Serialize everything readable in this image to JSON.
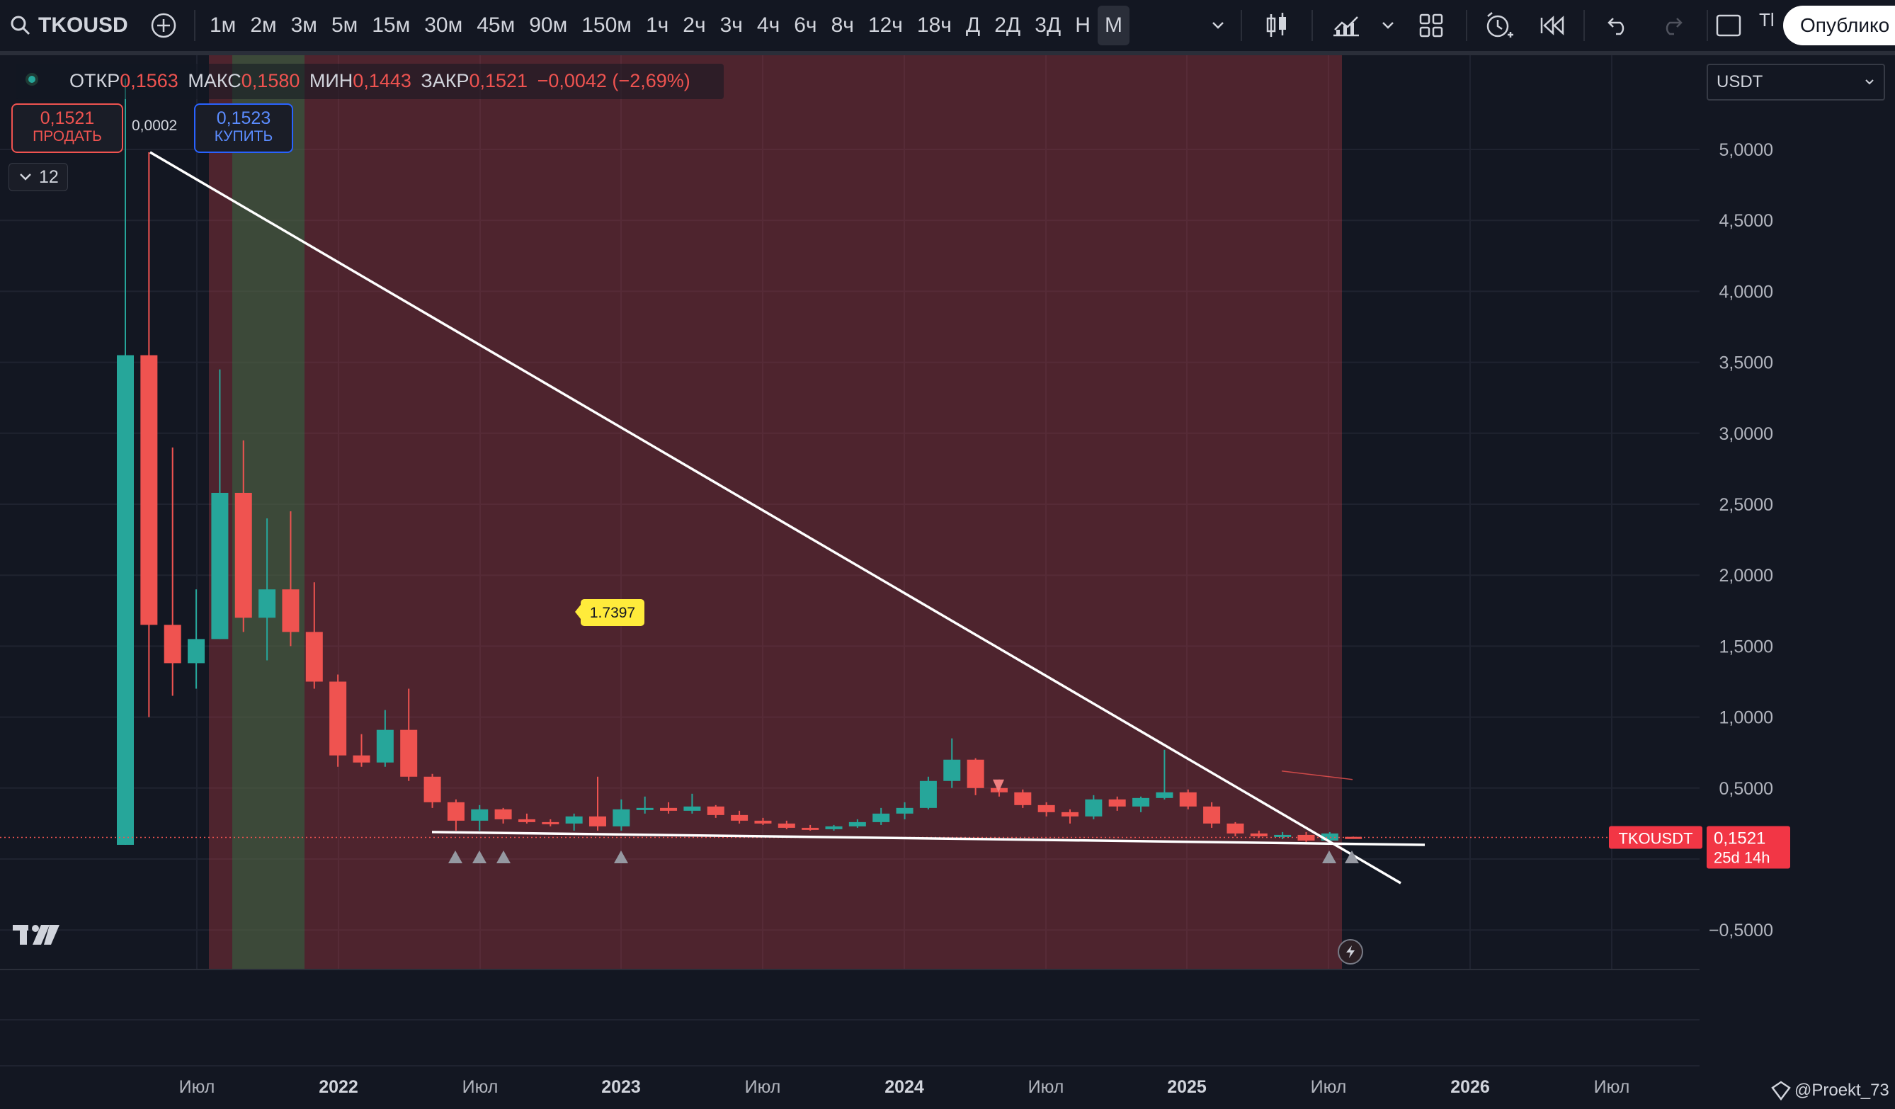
{
  "toolbar": {
    "symbol": "TKOUSD",
    "timeframes": [
      "1м",
      "2м",
      "3м",
      "5м",
      "15м",
      "30м",
      "45м",
      "90м",
      "150м",
      "1ч",
      "2ч",
      "3ч",
      "4ч",
      "6ч",
      "8ч",
      "12ч",
      "18ч",
      "Д",
      "2Д",
      "3Д",
      "Н",
      "М"
    ],
    "active_timeframe": "М",
    "truncated_label": "Tl",
    "publish_label": "Опублико",
    "icons": [
      "search-icon",
      "add-symbol-icon",
      "chevron-down-icon",
      "candles-icon",
      "indicators-icon",
      "chevron-down-icon",
      "layouts-icon",
      "alert-icon",
      "replay-icon",
      "undo-icon",
      "redo-icon",
      "fullscreen-icon"
    ]
  },
  "legend": {
    "status_color": "#26a69a",
    "open_label": "ОТКР",
    "open": "0,1563",
    "high_label": "МАКС",
    "high": "0,1580",
    "low_label": "МИН",
    "low": "0,1443",
    "close_label": "ЗАКР",
    "close": "0,1521",
    "change": "−0,0042 (−2,69%)",
    "sell_price": "0,1521",
    "sell_label": "ПРОДАТЬ",
    "spread": "0,0002",
    "buy_price": "0,1523",
    "buy_label": "КУПИТЬ",
    "indicators_count": "12"
  },
  "currency_select": "USDT",
  "price_tag": {
    "symbol": "TKOUSDT",
    "price": "0,1521",
    "countdown": "25d 14h"
  },
  "annotation": "1.7397",
  "watermark": "@Proekt_73",
  "chart_data": {
    "type": "candlestick",
    "interval": "monthly",
    "y_ticks": [
      "5,0000",
      "4,5000",
      "4,0000",
      "3,5000",
      "3,0000",
      "2,5000",
      "2,0000",
      "1,5000",
      "1,0000",
      "0,5000",
      "−0,5000"
    ],
    "x_ticks": [
      "Июл",
      "2022",
      "Июл",
      "2023",
      "Июл",
      "2024",
      "Июл",
      "2025",
      "Июл",
      "2026",
      "Июл"
    ],
    "ylim": [
      -0.7,
      5.8
    ],
    "candles": [
      {
        "o": 0.1,
        "h": 5.5,
        "l": 0.1,
        "c": 3.55
      },
      {
        "o": 3.55,
        "h": 4.98,
        "l": 1.0,
        "c": 1.65
      },
      {
        "o": 1.65,
        "h": 2.9,
        "l": 1.15,
        "c": 1.38
      },
      {
        "o": 1.38,
        "h": 1.9,
        "l": 1.2,
        "c": 1.55
      },
      {
        "o": 1.55,
        "h": 3.45,
        "l": 1.55,
        "c": 2.58
      },
      {
        "o": 2.58,
        "h": 2.95,
        "l": 1.6,
        "c": 1.7
      },
      {
        "o": 1.7,
        "h": 2.4,
        "l": 1.4,
        "c": 1.9
      },
      {
        "o": 1.9,
        "h": 2.45,
        "l": 1.5,
        "c": 1.6
      },
      {
        "o": 1.6,
        "h": 1.95,
        "l": 1.2,
        "c": 1.25
      },
      {
        "o": 1.25,
        "h": 1.3,
        "l": 0.65,
        "c": 0.73
      },
      {
        "o": 0.73,
        "h": 0.88,
        "l": 0.65,
        "c": 0.68
      },
      {
        "o": 0.68,
        "h": 1.05,
        "l": 0.65,
        "c": 0.91
      },
      {
        "o": 0.91,
        "h": 1.2,
        "l": 0.55,
        "c": 0.58
      },
      {
        "o": 0.58,
        "h": 0.6,
        "l": 0.36,
        "c": 0.4
      },
      {
        "o": 0.4,
        "h": 0.42,
        "l": 0.2,
        "c": 0.27
      },
      {
        "o": 0.27,
        "h": 0.38,
        "l": 0.2,
        "c": 0.35
      },
      {
        "o": 0.35,
        "h": 0.36,
        "l": 0.25,
        "c": 0.28
      },
      {
        "o": 0.28,
        "h": 0.32,
        "l": 0.25,
        "c": 0.26
      },
      {
        "o": 0.26,
        "h": 0.28,
        "l": 0.23,
        "c": 0.25
      },
      {
        "o": 0.25,
        "h": 0.32,
        "l": 0.2,
        "c": 0.3
      },
      {
        "o": 0.3,
        "h": 0.58,
        "l": 0.2,
        "c": 0.23
      },
      {
        "o": 0.23,
        "h": 0.42,
        "l": 0.2,
        "c": 0.35
      },
      {
        "o": 0.35,
        "h": 0.44,
        "l": 0.32,
        "c": 0.36
      },
      {
        "o": 0.36,
        "h": 0.4,
        "l": 0.32,
        "c": 0.34
      },
      {
        "o": 0.34,
        "h": 0.46,
        "l": 0.32,
        "c": 0.37
      },
      {
        "o": 0.37,
        "h": 0.38,
        "l": 0.29,
        "c": 0.31
      },
      {
        "o": 0.31,
        "h": 0.34,
        "l": 0.25,
        "c": 0.27
      },
      {
        "o": 0.27,
        "h": 0.29,
        "l": 0.24,
        "c": 0.25
      },
      {
        "o": 0.25,
        "h": 0.27,
        "l": 0.21,
        "c": 0.22
      },
      {
        "o": 0.22,
        "h": 0.24,
        "l": 0.2,
        "c": 0.21
      },
      {
        "o": 0.21,
        "h": 0.24,
        "l": 0.2,
        "c": 0.23
      },
      {
        "o": 0.23,
        "h": 0.28,
        "l": 0.22,
        "c": 0.26
      },
      {
        "o": 0.26,
        "h": 0.36,
        "l": 0.24,
        "c": 0.32
      },
      {
        "o": 0.32,
        "h": 0.4,
        "l": 0.28,
        "c": 0.36
      },
      {
        "o": 0.36,
        "h": 0.58,
        "l": 0.35,
        "c": 0.55
      },
      {
        "o": 0.55,
        "h": 0.85,
        "l": 0.5,
        "c": 0.7
      },
      {
        "o": 0.7,
        "h": 0.71,
        "l": 0.45,
        "c": 0.5
      },
      {
        "o": 0.5,
        "h": 0.56,
        "l": 0.44,
        "c": 0.47
      },
      {
        "o": 0.47,
        "h": 0.49,
        "l": 0.36,
        "c": 0.38
      },
      {
        "o": 0.38,
        "h": 0.4,
        "l": 0.3,
        "c": 0.33
      },
      {
        "o": 0.33,
        "h": 0.35,
        "l": 0.25,
        "c": 0.3
      },
      {
        "o": 0.3,
        "h": 0.45,
        "l": 0.28,
        "c": 0.42
      },
      {
        "o": 0.42,
        "h": 0.44,
        "l": 0.34,
        "c": 0.37
      },
      {
        "o": 0.37,
        "h": 0.44,
        "l": 0.33,
        "c": 0.43
      },
      {
        "o": 0.43,
        "h": 0.77,
        "l": 0.42,
        "c": 0.47
      },
      {
        "o": 0.47,
        "h": 0.49,
        "l": 0.35,
        "c": 0.37
      },
      {
        "o": 0.37,
        "h": 0.4,
        "l": 0.22,
        "c": 0.25
      },
      {
        "o": 0.25,
        "h": 0.26,
        "l": 0.16,
        "c": 0.18
      },
      {
        "o": 0.18,
        "h": 0.2,
        "l": 0.15,
        "c": 0.16
      },
      {
        "o": 0.16,
        "h": 0.19,
        "l": 0.14,
        "c": 0.17
      },
      {
        "o": 0.17,
        "h": 0.19,
        "l": 0.12,
        "c": 0.13
      },
      {
        "o": 0.13,
        "h": 0.19,
        "l": 0.12,
        "c": 0.18
      },
      {
        "o": 0.1563,
        "h": 0.158,
        "l": 0.1443,
        "c": 0.1521
      }
    ],
    "up_color": "#26a69a",
    "down_color": "#ef5350",
    "last_price": 0.1521
  }
}
